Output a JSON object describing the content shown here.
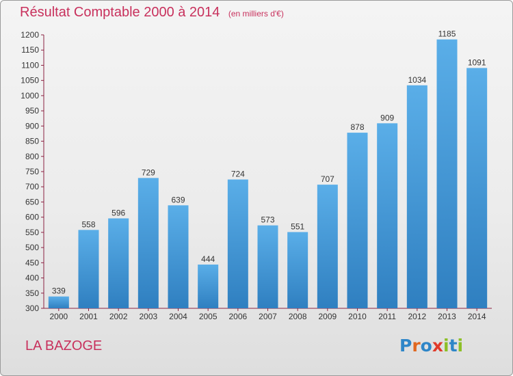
{
  "page": {
    "title": "Résultat Comptable 2000 à 2014",
    "subtitle": "(en milliers d'€)",
    "commune": "LA BAZOGE",
    "logo_text": "Proxiti"
  },
  "colors": {
    "title": "#c8305c",
    "bar_top": "#5aaee8",
    "bar_bottom": "#2f7fc0",
    "axis": "#8a2040",
    "logo_letters": [
      "#2e86c8",
      "#e0671f",
      "#2e86c8",
      "#e03a2a",
      "#8cbf26",
      "#2e86c8",
      "#8cbf26"
    ]
  },
  "chart_data": {
    "type": "bar",
    "title": "Résultat Comptable 2000 à 2014",
    "subtitle": "(en milliers d'€)",
    "categories": [
      "2000",
      "2001",
      "2002",
      "2003",
      "2004",
      "2005",
      "2006",
      "2007",
      "2008",
      "2009",
      "2010",
      "2011",
      "2012",
      "2013",
      "2014"
    ],
    "values": [
      339,
      558,
      596,
      729,
      639,
      444,
      724,
      573,
      551,
      707,
      878,
      909,
      1034,
      1185,
      1091
    ],
    "ylim": [
      300,
      1200
    ],
    "yticks": [
      300,
      350,
      400,
      450,
      500,
      550,
      600,
      650,
      700,
      750,
      800,
      850,
      900,
      950,
      1000,
      1050,
      1100,
      1150,
      1200
    ],
    "grid": false,
    "data_labels": true
  }
}
